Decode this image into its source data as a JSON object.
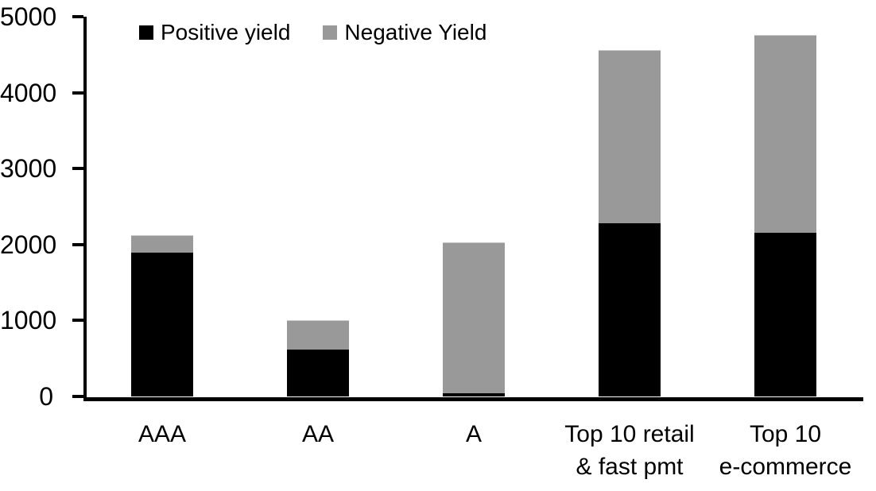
{
  "chart_data": {
    "type": "bar",
    "stacked": true,
    "title": "",
    "xlabel": "",
    "ylabel": "",
    "grid": false,
    "legend_position": "top",
    "background_color": "#ffffff",
    "axis_color": "#000000",
    "categories": [
      "AAA",
      "AA",
      "A",
      "Top 10 retail\n& fast pmt",
      "Top 10\ne-commerce"
    ],
    "series": [
      {
        "name": "Positive yield",
        "color": "#000000",
        "values": [
          1890,
          620,
          40,
          2280,
          2150
        ]
      },
      {
        "name": "Negative Yield",
        "color": "#999999",
        "values": [
          230,
          385,
          1990,
          2285,
          2610
        ]
      }
    ],
    "totals": [
      2120,
      1005,
      2030,
      4565,
      4760
    ],
    "ylim": [
      0,
      5000
    ],
    "yticks": [
      "0",
      "1000",
      "2000",
      "3000",
      "4000",
      "5000"
    ]
  }
}
